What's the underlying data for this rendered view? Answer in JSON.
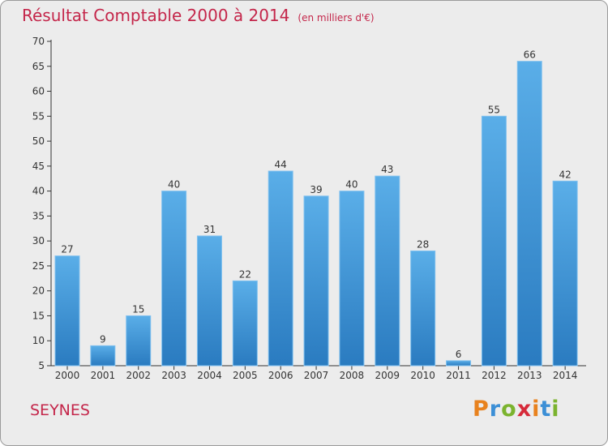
{
  "chart_data": {
    "type": "bar",
    "title": "Résultat Comptable 2000 à 2014",
    "subtitle": "(en milliers d'€)",
    "categories": [
      "2000",
      "2001",
      "2002",
      "2003",
      "2004",
      "2005",
      "2006",
      "2007",
      "2008",
      "2009",
      "2010",
      "2011",
      "2012",
      "2013",
      "2014"
    ],
    "values": [
      27,
      9,
      15,
      40,
      31,
      22,
      44,
      39,
      40,
      43,
      28,
      6,
      55,
      66,
      42
    ],
    "ylim": [
      5,
      70
    ],
    "yticks": [
      5,
      10,
      15,
      20,
      25,
      30,
      35,
      40,
      45,
      50,
      55,
      60,
      65,
      70
    ],
    "grid": false,
    "xlabel": "",
    "ylabel": "",
    "bar_color": "#3b8fd3"
  },
  "place": "SEYNES",
  "brand": {
    "letters": [
      "P",
      "r",
      "o",
      "x",
      "i",
      "t",
      "i"
    ],
    "colors": [
      "#e8821e",
      "#3c8fd6",
      "#7bb32e",
      "#d62a3a",
      "#e8821e",
      "#3c8fd6",
      "#7bb32e"
    ]
  }
}
